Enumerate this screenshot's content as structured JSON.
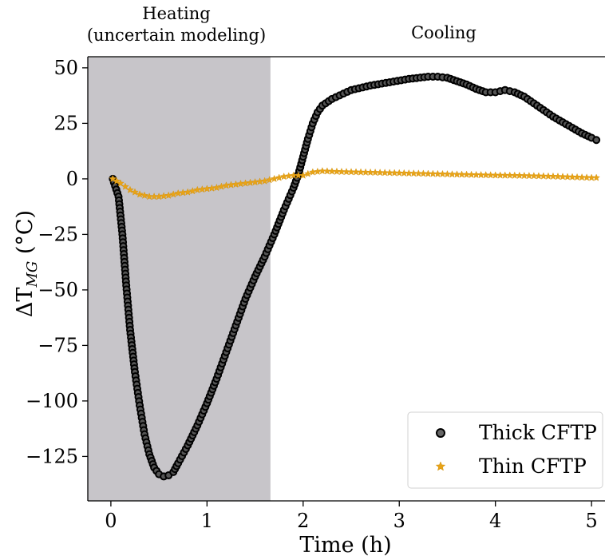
{
  "chart_data": {
    "type": "scatter",
    "xlabel": "Time (h)",
    "ylabel": "ΔT",
    "ylabel_sub": "MG",
    "ylabel_unit": " (°C)",
    "xlim": [
      -0.24,
      5.14
    ],
    "ylim": [
      -145,
      55
    ],
    "xticks": [
      0,
      1,
      2,
      3,
      4,
      5
    ],
    "yticks": [
      50,
      25,
      0,
      -25,
      -50,
      -75,
      -100,
      -125
    ],
    "ytick_labels": [
      "50",
      "25",
      "0",
      "−25",
      "−50",
      "−75",
      "−100",
      "−125"
    ],
    "grid": false,
    "legend_position": "lower-right",
    "regions": [
      {
        "name": "heating",
        "label_line1": "Heating",
        "label_line2": "(uncertain modeling)",
        "x0": -0.24,
        "x1": 1.66,
        "color": "#c7c5c9"
      },
      {
        "name": "cooling",
        "label_line1": "Cooling",
        "x0": 1.66,
        "x1": 5.14,
        "color": "#ffffff"
      }
    ],
    "series": [
      {
        "name": "Thick CFTP",
        "marker": "circle",
        "color": "#000000",
        "points": [
          [
            0.02,
            0
          ],
          [
            0.08,
            -8
          ],
          [
            0.12,
            -25
          ],
          [
            0.16,
            -48
          ],
          [
            0.2,
            -68
          ],
          [
            0.25,
            -87
          ],
          [
            0.3,
            -102
          ],
          [
            0.35,
            -115
          ],
          [
            0.4,
            -124
          ],
          [
            0.45,
            -130
          ],
          [
            0.5,
            -133
          ],
          [
            0.55,
            -134
          ],
          [
            0.6,
            -133.5
          ],
          [
            0.65,
            -132
          ],
          [
            0.7,
            -128
          ],
          [
            0.8,
            -120
          ],
          [
            0.9,
            -111
          ],
          [
            1.0,
            -101
          ],
          [
            1.1,
            -90
          ],
          [
            1.2,
            -78
          ],
          [
            1.3,
            -66
          ],
          [
            1.4,
            -54
          ],
          [
            1.5,
            -44
          ],
          [
            1.6,
            -35
          ],
          [
            1.7,
            -25
          ],
          [
            1.8,
            -14
          ],
          [
            1.9,
            -4
          ],
          [
            1.95,
            2
          ],
          [
            2.0,
            10
          ],
          [
            2.05,
            18
          ],
          [
            2.1,
            25
          ],
          [
            2.15,
            30
          ],
          [
            2.2,
            33
          ],
          [
            2.3,
            36
          ],
          [
            2.5,
            40
          ],
          [
            2.7,
            42
          ],
          [
            2.9,
            43.5
          ],
          [
            3.1,
            45
          ],
          [
            3.3,
            46
          ],
          [
            3.4,
            46
          ],
          [
            3.5,
            45.5
          ],
          [
            3.6,
            44
          ],
          [
            3.7,
            42.5
          ],
          [
            3.8,
            40.5
          ],
          [
            3.9,
            39
          ],
          [
            4.0,
            39
          ],
          [
            4.1,
            40
          ],
          [
            4.2,
            39
          ],
          [
            4.3,
            37
          ],
          [
            4.4,
            34
          ],
          [
            4.5,
            31
          ],
          [
            4.6,
            28
          ],
          [
            4.7,
            25.5
          ],
          [
            4.8,
            23
          ],
          [
            4.9,
            20.5
          ],
          [
            5.0,
            18.5
          ],
          [
            5.05,
            17.5
          ]
        ]
      },
      {
        "name": "Thin CFTP",
        "marker": "star",
        "color": "#e8a317",
        "points": [
          [
            0.02,
            0
          ],
          [
            0.1,
            -2
          ],
          [
            0.2,
            -5
          ],
          [
            0.3,
            -7
          ],
          [
            0.4,
            -8
          ],
          [
            0.5,
            -8
          ],
          [
            0.6,
            -7.5
          ],
          [
            0.7,
            -6.5
          ],
          [
            0.8,
            -6
          ],
          [
            0.9,
            -5
          ],
          [
            1.0,
            -4.5
          ],
          [
            1.1,
            -4
          ],
          [
            1.2,
            -3
          ],
          [
            1.3,
            -2.5
          ],
          [
            1.4,
            -2
          ],
          [
            1.5,
            -1.5
          ],
          [
            1.6,
            -1
          ],
          [
            1.7,
            0
          ],
          [
            1.8,
            1
          ],
          [
            1.9,
            1.5
          ],
          [
            2.0,
            1.5
          ],
          [
            2.1,
            3
          ],
          [
            2.2,
            3.5
          ],
          [
            2.4,
            3.2
          ],
          [
            2.6,
            3
          ],
          [
            2.8,
            2.8
          ],
          [
            3.0,
            2.6
          ],
          [
            3.2,
            2.4
          ],
          [
            3.4,
            2.2
          ],
          [
            3.6,
            2
          ],
          [
            3.8,
            1.8
          ],
          [
            4.0,
            1.6
          ],
          [
            4.2,
            1.5
          ],
          [
            4.4,
            1.3
          ],
          [
            4.6,
            1.1
          ],
          [
            4.8,
            0.8
          ],
          [
            5.0,
            0.5
          ],
          [
            5.05,
            0.5
          ]
        ]
      }
    ]
  }
}
